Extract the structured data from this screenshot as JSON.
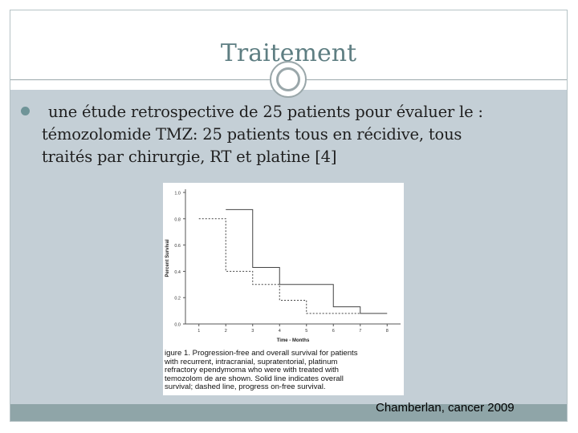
{
  "slide": {
    "title": "Traitement",
    "bullet_lines": [
      "une étude retrospective de 25 patients pour évaluer le :",
      "témozolomide TMZ: 25 patients tous en récidive, tous",
      "traités par chirurgie, RT et platine [4]"
    ],
    "citation": "Chamberlan, cancer 2009"
  },
  "colors": {
    "title": "#5e7e82",
    "content_bg": "#c4cfd6",
    "footer_bar": "#8fa5a8",
    "bullet": "#6f9498"
  },
  "figure": {
    "caption_lines": [
      "igure 1. Progression-free and overall survival for patients",
      "with recurrent, intracranial, supratentorial, platinum",
      "refractory ependymoma who were with treated with",
      "temozolom de are shown. Solid line indicates overall",
      "survival; dashed line, progress on-free survival."
    ]
  },
  "chart_data": {
    "type": "line",
    "title": "",
    "xlabel": "Time - Months",
    "ylabel": "Percent Survival",
    "xlim": [
      0.5,
      8.5
    ],
    "ylim": [
      0,
      1.0
    ],
    "x_ticks": [
      "1",
      "2",
      "3",
      "4",
      "5",
      "6",
      "7",
      "8"
    ],
    "y_ticks": [
      "0.0",
      "0.2",
      "0.4",
      "0.6",
      "0.8",
      "1.0"
    ],
    "grid": false,
    "legend": "none",
    "series": [
      {
        "style": "solid",
        "x": [
          2,
          3,
          3,
          4,
          4,
          6,
          6,
          7,
          7,
          8
        ],
        "y": [
          0.87,
          0.87,
          0.43,
          0.43,
          0.3,
          0.3,
          0.13,
          0.13,
          0.08,
          0.08
        ]
      },
      {
        "style": "dashed",
        "x": [
          1,
          2,
          2,
          3,
          3,
          4,
          4,
          5,
          5,
          7
        ],
        "y": [
          0.8,
          0.8,
          0.4,
          0.4,
          0.3,
          0.3,
          0.18,
          0.18,
          0.08,
          0.08
        ]
      }
    ]
  }
}
